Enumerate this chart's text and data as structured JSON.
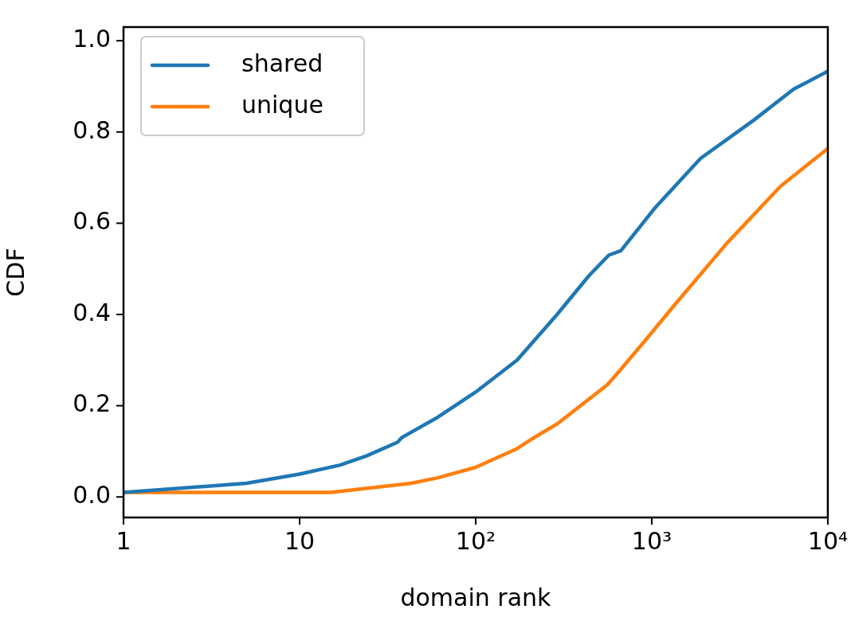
{
  "chart_data": {
    "type": "line",
    "xlabel": "domain rank",
    "ylabel": "CDF",
    "log": "x",
    "xlim": [
      1,
      10000
    ],
    "xticks": [
      1,
      10,
      {
        "value": 100,
        "label": "10²"
      },
      {
        "value": 1000,
        "label": "10³"
      },
      {
        "value": 10000,
        "label": "10⁴"
      }
    ],
    "ylim": [
      -0.045,
      1.03
    ],
    "yticks": [
      {
        "value": 0,
        "label": "0.0"
      },
      {
        "value": 0.2,
        "label": "0.2"
      },
      {
        "value": 0.4,
        "label": "0.4"
      },
      {
        "value": 0.6,
        "label": "0.6"
      },
      {
        "value": 0.8,
        "label": "0.8"
      },
      {
        "value": 1,
        "label": "1.0"
      }
    ],
    "grid": false,
    "legend": "top left",
    "marker": "none",
    "line_style": "solid",
    "series": [
      {
        "name": "shared",
        "color": "#1f77b4",
        "x": [
          1,
          5,
          10,
          17,
          24,
          36,
          38,
          61,
          100,
          172,
          290,
          440,
          570,
          668,
          1045,
          1892,
          3800,
          6390,
          10000
        ],
        "values": [
          0.01,
          0.03,
          0.05,
          0.07,
          0.09,
          0.12,
          0.13,
          0.175,
          0.23,
          0.3,
          0.4,
          0.485,
          0.53,
          0.54,
          0.634,
          0.742,
          0.826,
          0.894,
          0.933
        ]
      },
      {
        "name": "unique",
        "color": "#ff7f0e",
        "x": [
          1,
          15,
          43,
          61,
          100,
          172,
          206,
          290,
          560,
          668,
          913,
          1342,
          2668,
          5355,
          10000
        ],
        "values": [
          0.01,
          0.01,
          0.03,
          0.042,
          0.065,
          0.106,
          0.126,
          0.16,
          0.246,
          0.28,
          0.342,
          0.42,
          0.556,
          0.68,
          0.764
        ]
      }
    ]
  }
}
